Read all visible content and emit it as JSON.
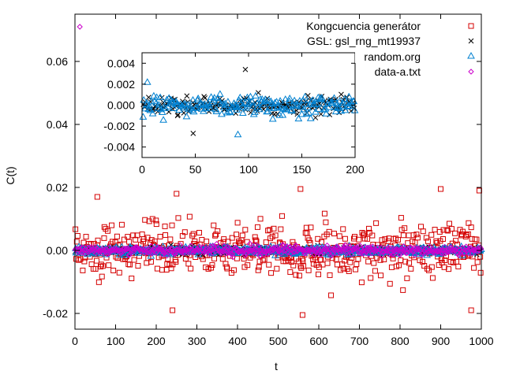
{
  "chart_data": [
    {
      "type": "scatter",
      "title": "",
      "xlabel": "t",
      "ylabel": "C(t)",
      "xlim": [
        0,
        1000
      ],
      "ylim": [
        -0.025,
        0.075
      ],
      "xticks": [
        0,
        100,
        200,
        300,
        400,
        500,
        600,
        700,
        800,
        900,
        1000
      ],
      "yticks": [
        -0.02,
        0.0,
        0.02,
        0.04,
        0.06
      ],
      "ytick_labels": [
        "-0.02",
        "0.00",
        "0.02",
        "0.04",
        "0.06"
      ],
      "legend_position": "top-right",
      "grid": false,
      "series": [
        {
          "name": "Kongcuencia generátor",
          "marker": "square",
          "color": "#d40000",
          "spread": 0.0075,
          "x_range": [
            0,
            1000
          ],
          "notable_points": [
            {
              "x": 55,
              "y": 0.017
            },
            {
              "x": 240,
              "y": -0.019
            },
            {
              "x": 250,
              "y": 0.018
            },
            {
              "x": 555,
              "y": 0.0195
            },
            {
              "x": 560,
              "y": -0.0205
            },
            {
              "x": 900,
              "y": 0.0195
            },
            {
              "x": 975,
              "y": -0.019
            },
            {
              "x": 995,
              "y": 0.019
            }
          ]
        },
        {
          "name": "GSL: gsl_rng_mt19937",
          "marker": "cross",
          "color": "#000000",
          "spread": 0.001,
          "x_range": [
            0,
            1000
          ]
        },
        {
          "name": "random.org",
          "marker": "triangle",
          "color": "#0080d0",
          "spread": 0.001,
          "x_range": [
            0,
            1000
          ]
        },
        {
          "name": "data-a.txt",
          "marker": "diamond",
          "color": "#cc00cc",
          "spread": 0.0013,
          "x_range": [
            0,
            1000
          ],
          "notable_points": [
            {
              "x": 12,
              "y": 0.071
            }
          ]
        }
      ]
    },
    {
      "type": "scatter",
      "title": "",
      "xlabel": "",
      "ylabel": "",
      "xlim": [
        0,
        200
      ],
      "ylim": [
        -0.005,
        0.005
      ],
      "xticks": [
        0,
        50,
        100,
        150,
        200
      ],
      "yticks": [
        -0.004,
        -0.002,
        0.0,
        0.002,
        0.004
      ],
      "ytick_labels": [
        "-0.004",
        "-0.002",
        "0.000",
        "0.002",
        "0.004"
      ],
      "grid": false,
      "series": [
        {
          "name": "GSL: gsl_rng_mt19937",
          "marker": "cross",
          "color": "#000000",
          "spread": 0.0008,
          "x_range": [
            0,
            200
          ],
          "notable_points": [
            {
              "x": 97,
              "y": 0.0034
            },
            {
              "x": 48,
              "y": -0.0027
            }
          ]
        },
        {
          "name": "random.org",
          "marker": "triangle",
          "color": "#0080d0",
          "spread": 0.0009,
          "x_range": [
            0,
            200
          ],
          "notable_points": [
            {
              "x": 5,
              "y": 0.0022
            },
            {
              "x": 90,
              "y": -0.0028
            }
          ]
        }
      ]
    }
  ]
}
